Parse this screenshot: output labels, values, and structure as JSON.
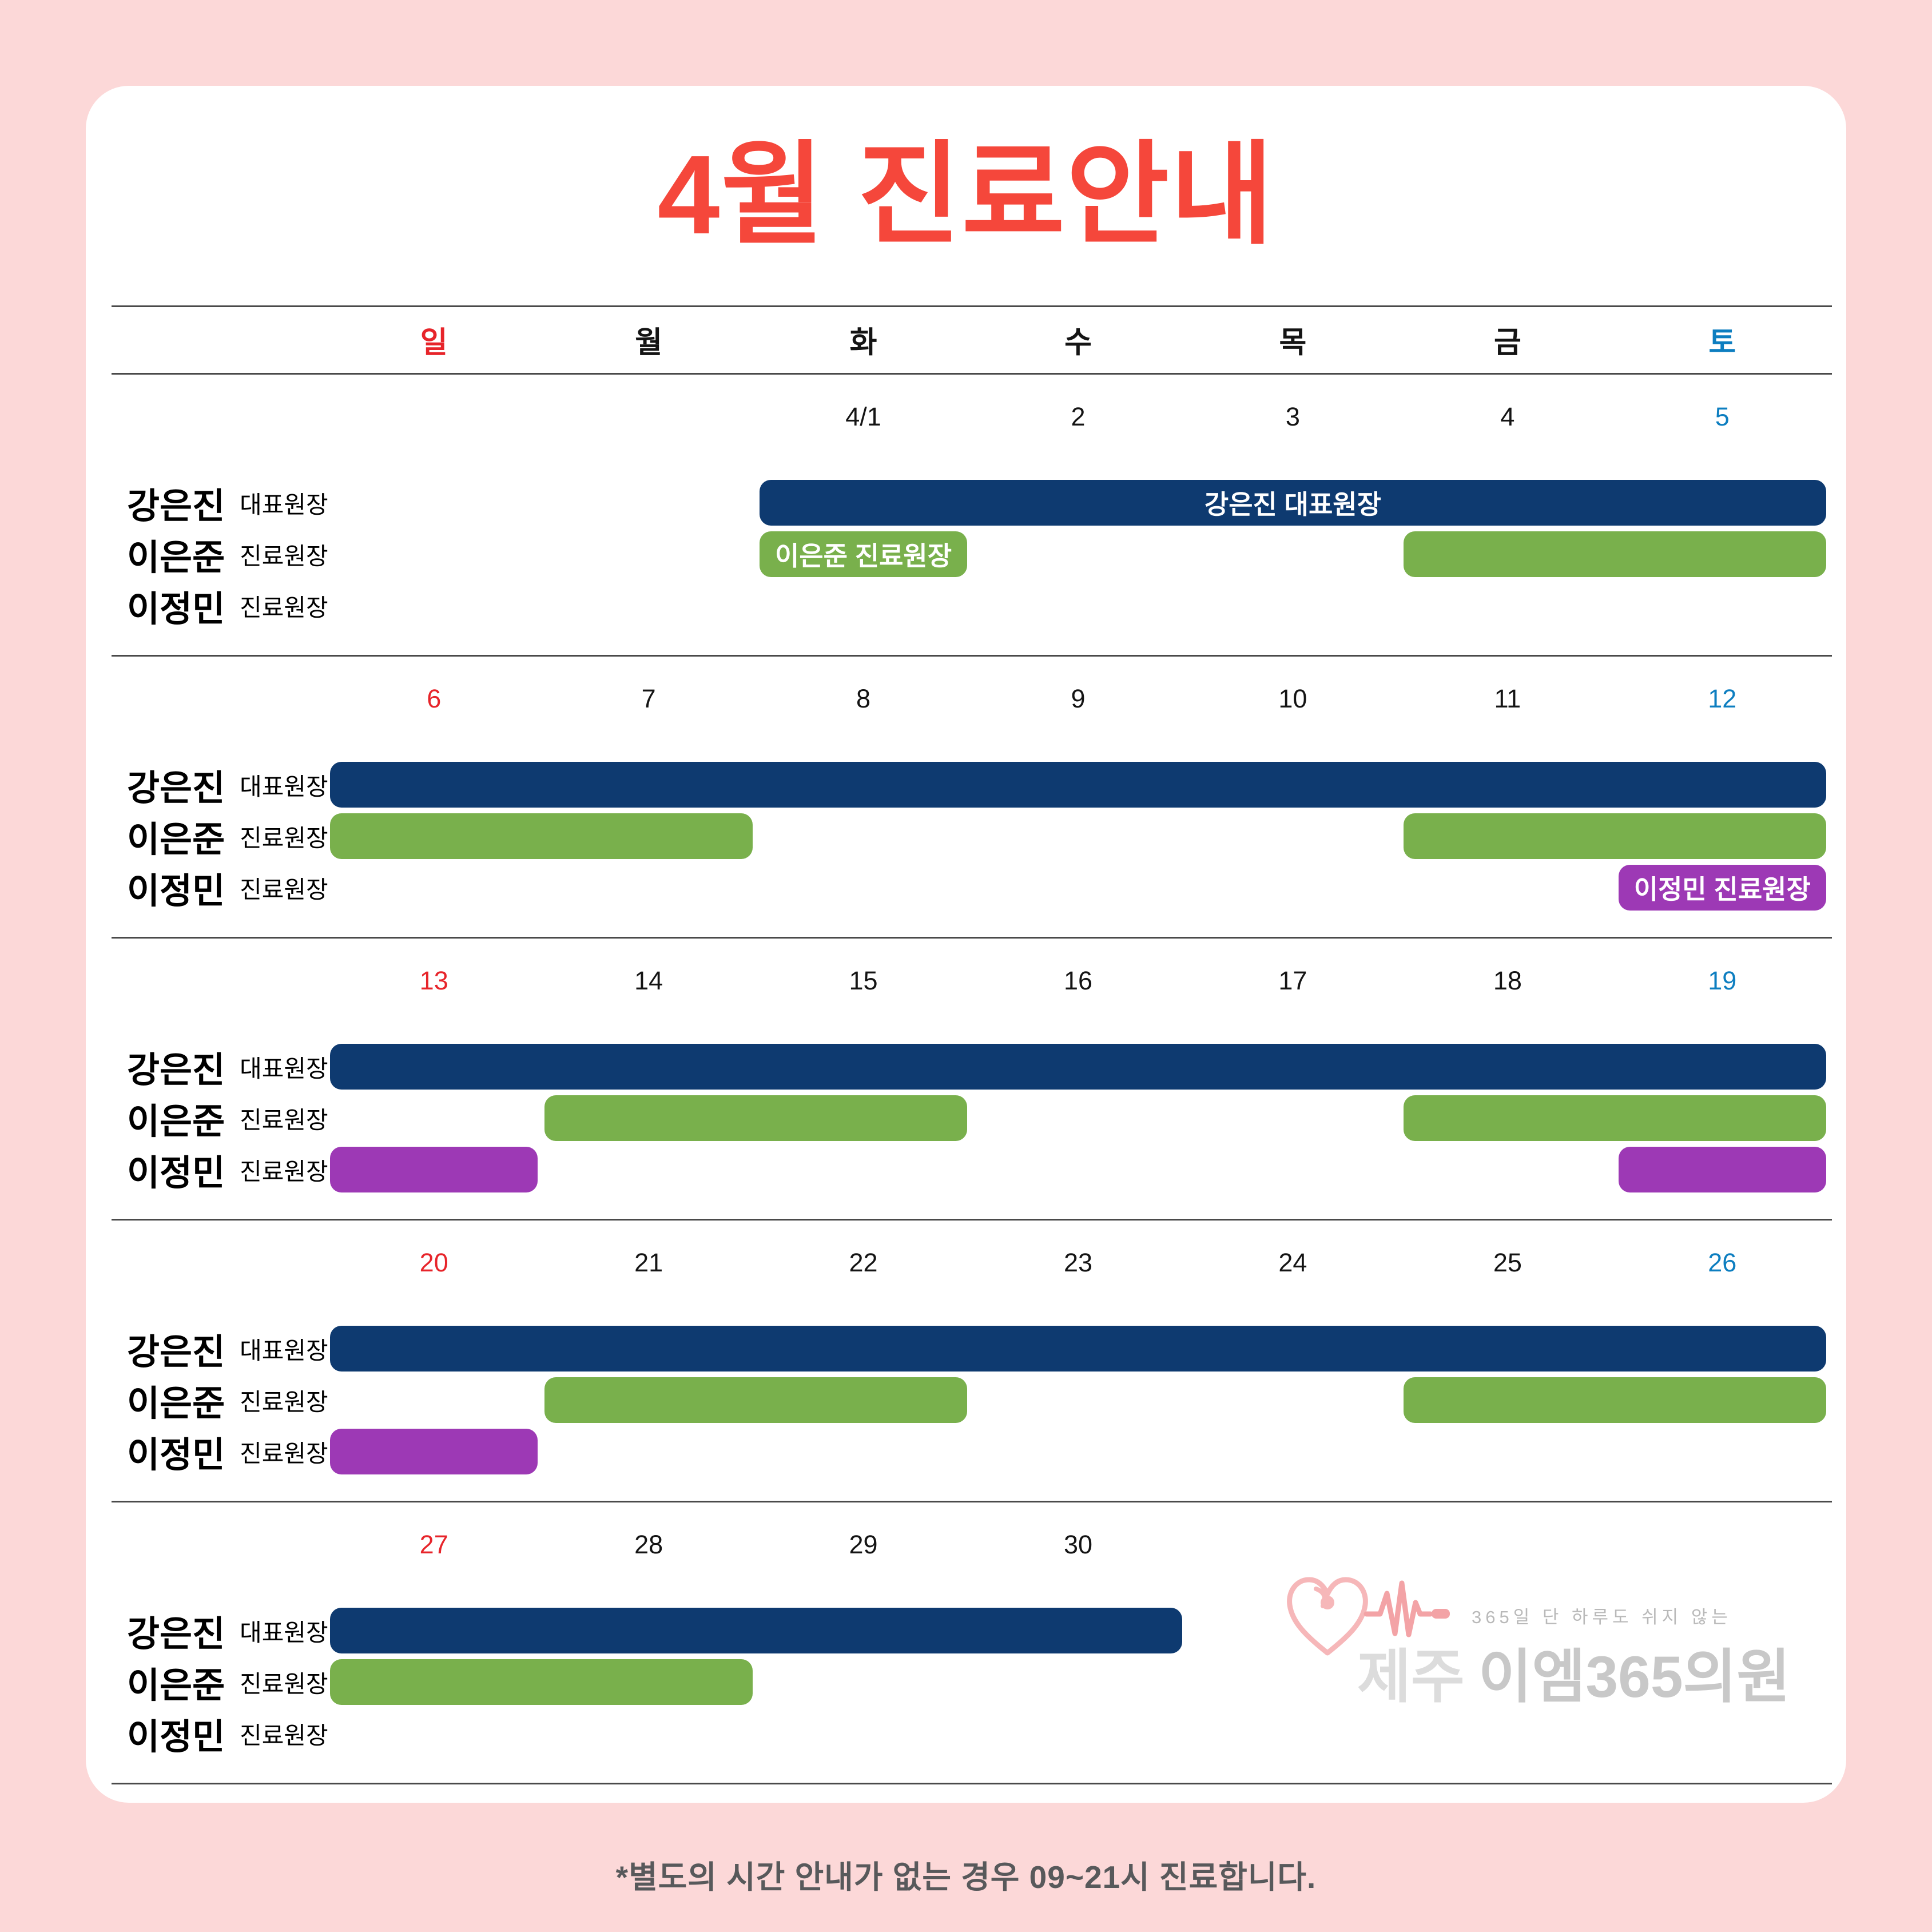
{
  "title": "4월 진료안내",
  "footer_note": "*별도의 시간 안내가 없는 경우 09~21시 진료합니다.",
  "colors": {
    "page_bg": "#fcd8d8",
    "card_bg": "#ffffff",
    "title": "#f5473b",
    "sunday": "#e7242a",
    "saturday": "#0d7ec0",
    "weekday": "#141414",
    "line": "#4a4a4a",
    "navy": "#0e3a70",
    "green": "#79b04c",
    "purple": "#9d39b5",
    "bar_text": "#ffffff",
    "footer_text": "#58595b",
    "logo_heart": "#f6b7b9",
    "logo_pulse": "#f3a3a6",
    "logo_tagline": "#b9b9b9",
    "logo_region": "#dcdcdc",
    "logo_name": "#c8c8c8"
  },
  "day_headers": [
    {
      "label": "일",
      "type": "sun"
    },
    {
      "label": "월",
      "type": "wd"
    },
    {
      "label": "화",
      "type": "wd"
    },
    {
      "label": "수",
      "type": "wd"
    },
    {
      "label": "목",
      "type": "wd"
    },
    {
      "label": "금",
      "type": "wd"
    },
    {
      "label": "토",
      "type": "sat"
    }
  ],
  "doctors": [
    {
      "name": "강은진",
      "role": "대표원장"
    },
    {
      "name": "이은준",
      "role": "진료원장"
    },
    {
      "name": "이정민",
      "role": "진료원장"
    }
  ],
  "weeks": [
    {
      "dates": [
        {
          "col": 2,
          "text": "4/1",
          "type": "wd"
        },
        {
          "col": 3,
          "text": "2",
          "type": "wd"
        },
        {
          "col": 4,
          "text": "3",
          "type": "wd"
        },
        {
          "col": 5,
          "text": "4",
          "type": "wd"
        },
        {
          "col": 6,
          "text": "5",
          "type": "sat"
        }
      ],
      "bars": [
        {
          "row": 0,
          "from": 2,
          "to": 6,
          "label": "강은진 대표원장"
        },
        {
          "row": 1,
          "from": 2,
          "to": 2,
          "label": "이은준 진료원장"
        },
        {
          "row": 1,
          "from": 5,
          "to": 6,
          "label": ""
        }
      ]
    },
    {
      "dates": [
        {
          "col": 0,
          "text": "6",
          "type": "sun"
        },
        {
          "col": 1,
          "text": "7",
          "type": "wd"
        },
        {
          "col": 2,
          "text": "8",
          "type": "wd"
        },
        {
          "col": 3,
          "text": "9",
          "type": "wd"
        },
        {
          "col": 4,
          "text": "10",
          "type": "wd"
        },
        {
          "col": 5,
          "text": "11",
          "type": "wd"
        },
        {
          "col": 6,
          "text": "12",
          "type": "sat"
        }
      ],
      "bars": [
        {
          "row": 0,
          "from": 0,
          "to": 6,
          "label": ""
        },
        {
          "row": 1,
          "from": 0,
          "to": 1,
          "label": ""
        },
        {
          "row": 1,
          "from": 5,
          "to": 6,
          "label": ""
        },
        {
          "row": 2,
          "from": 6,
          "to": 6,
          "label": "이정민 진료원장"
        }
      ]
    },
    {
      "dates": [
        {
          "col": 0,
          "text": "13",
          "type": "sun"
        },
        {
          "col": 1,
          "text": "14",
          "type": "wd"
        },
        {
          "col": 2,
          "text": "15",
          "type": "wd"
        },
        {
          "col": 3,
          "text": "16",
          "type": "wd"
        },
        {
          "col": 4,
          "text": "17",
          "type": "wd"
        },
        {
          "col": 5,
          "text": "18",
          "type": "wd"
        },
        {
          "col": 6,
          "text": "19",
          "type": "sat"
        }
      ],
      "bars": [
        {
          "row": 0,
          "from": 0,
          "to": 6,
          "label": ""
        },
        {
          "row": 1,
          "from": 1,
          "to": 2,
          "label": ""
        },
        {
          "row": 1,
          "from": 5,
          "to": 6,
          "label": ""
        },
        {
          "row": 2,
          "from": 0,
          "to": 0,
          "label": ""
        },
        {
          "row": 2,
          "from": 6,
          "to": 6,
          "label": ""
        }
      ]
    },
    {
      "dates": [
        {
          "col": 0,
          "text": "20",
          "type": "sun"
        },
        {
          "col": 1,
          "text": "21",
          "type": "wd"
        },
        {
          "col": 2,
          "text": "22",
          "type": "wd"
        },
        {
          "col": 3,
          "text": "23",
          "type": "wd"
        },
        {
          "col": 4,
          "text": "24",
          "type": "wd"
        },
        {
          "col": 5,
          "text": "25",
          "type": "wd"
        },
        {
          "col": 6,
          "text": "26",
          "type": "sat"
        }
      ],
      "bars": [
        {
          "row": 0,
          "from": 0,
          "to": 6,
          "label": ""
        },
        {
          "row": 1,
          "from": 1,
          "to": 2,
          "label": ""
        },
        {
          "row": 1,
          "from": 5,
          "to": 6,
          "label": ""
        },
        {
          "row": 2,
          "from": 0,
          "to": 0,
          "label": ""
        }
      ]
    },
    {
      "dates": [
        {
          "col": 0,
          "text": "27",
          "type": "sun"
        },
        {
          "col": 1,
          "text": "28",
          "type": "wd"
        },
        {
          "col": 2,
          "text": "29",
          "type": "wd"
        },
        {
          "col": 3,
          "text": "30",
          "type": "wd"
        }
      ],
      "bars": [
        {
          "row": 0,
          "from": 0,
          "to": 3,
          "label": ""
        },
        {
          "row": 1,
          "from": 0,
          "to": 1,
          "label": ""
        }
      ]
    }
  ],
  "logo": {
    "tagline": "365일 단 하루도 쉬지 않는",
    "region": "제주",
    "name": "이엠365의원"
  },
  "chart_data": {
    "type": "table",
    "title": "4월 진료안내",
    "columns": [
      "일",
      "월",
      "화",
      "수",
      "목",
      "금",
      "토"
    ],
    "month": "4월",
    "date_range": [
      "4/1",
      "30"
    ],
    "series": [
      {
        "name": "강은진 대표원장",
        "color": "#0e3a70",
        "working_days": [
          1,
          2,
          3,
          4,
          5,
          6,
          7,
          8,
          9,
          10,
          11,
          12,
          13,
          14,
          15,
          16,
          17,
          18,
          19,
          20,
          21,
          22,
          23,
          24,
          25,
          26,
          27,
          28,
          29,
          30
        ]
      },
      {
        "name": "이은준 진료원장",
        "color": "#79b04c",
        "working_days": [
          1,
          4,
          5,
          6,
          7,
          11,
          12,
          14,
          15,
          18,
          19,
          21,
          22,
          25,
          26,
          27,
          28
        ]
      },
      {
        "name": "이정민 진료원장",
        "color": "#9d39b5",
        "working_days": [
          12,
          13,
          19,
          20
        ]
      }
    ],
    "legend_position": "left-row-labels",
    "note": "*별도의 시간 안내가 없는 경우 09~21시 진료합니다."
  }
}
